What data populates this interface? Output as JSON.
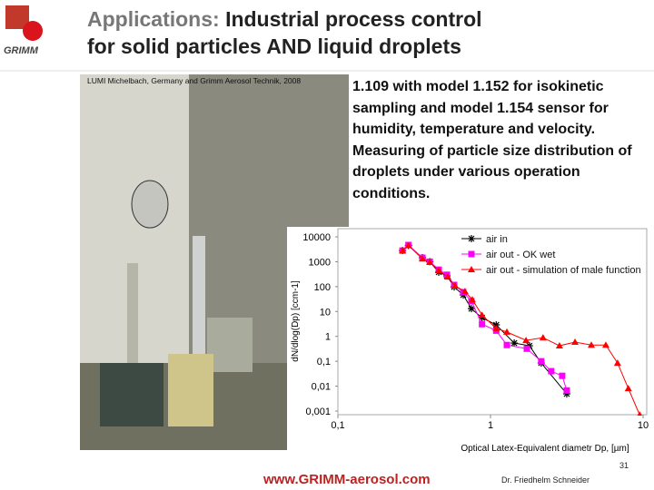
{
  "header": {
    "logo": "GRIMM",
    "title_lead": "Applications:",
    "title_line1": "Industrial process control",
    "title_line2": "for solid particles AND liquid droplets"
  },
  "photo_caption": "LUMI Michelbach, Germany and Grimm Aerosol Technik, 2008",
  "body_text": "1.109 with model 1.152 for isokinetic sampling and model 1.154 sensor for humidity, temperature and velocity. Measuring of particle size distribution of droplets under various operation conditions.",
  "chart_data": {
    "type": "line",
    "log_x": true,
    "log_y": true,
    "y_label": "dN/dlog(Dp) [ccm-1]",
    "x_label": "Optical Latex-Equivalent diametr Dp, [µm]",
    "xlim": [
      0.1,
      10
    ],
    "xticks": [
      {
        "value": 0.1,
        "label": "0,1"
      },
      1,
      10
    ],
    "ylim": [
      0.001,
      10000
    ],
    "yticks": [
      {
        "value": 0.001,
        "label": "0,001"
      },
      {
        "value": 0.01,
        "label": "0,01"
      },
      {
        "value": 0.1,
        "label": "0,1"
      },
      1,
      10,
      100,
      1000,
      10000
    ],
    "series": [
      {
        "name": "air in",
        "color": "#000000",
        "marker": "star",
        "x": [
          0.265,
          0.29,
          0.358,
          0.4,
          0.458,
          0.518,
          0.578,
          0.663,
          0.75,
          0.88,
          1.09,
          1.43,
          1.8,
          2.15,
          3.16
        ],
        "values": [
          2800,
          4500,
          1450,
          1000,
          380,
          270,
          97,
          46,
          13,
          5.6,
          2.9,
          0.54,
          0.42,
          0.085,
          0.0049
        ]
      },
      {
        "name": "air out - OK wet",
        "color": "#ff00ff",
        "marker": "square",
        "x": [
          0.265,
          0.29,
          0.358,
          0.4,
          0.458,
          0.518,
          0.578,
          0.663,
          0.75,
          0.88,
          1.09,
          1.28,
          1.73,
          2.15,
          2.5,
          2.95,
          3.16
        ],
        "values": [
          2800,
          4700,
          1450,
          1000,
          480,
          300,
          117,
          60,
          26,
          3.1,
          1.7,
          0.45,
          0.32,
          0.1,
          0.04,
          0.026,
          0.0067
        ]
      },
      {
        "name": "air out - simulation of male function",
        "color": "#ff0000",
        "marker": "triangle",
        "x": [
          0.265,
          0.29,
          0.358,
          0.4,
          0.458,
          0.525,
          0.586,
          0.68,
          0.76,
          0.88,
          1.09,
          1.28,
          1.71,
          2.21,
          2.83,
          3.58,
          4.58,
          5.7,
          6.8,
          8.0,
          9.5
        ],
        "values": [
          2800,
          4500,
          1300,
          950,
          450,
          245,
          107,
          64,
          30,
          7.2,
          2.1,
          1.5,
          0.69,
          0.89,
          0.42,
          0.59,
          0.45,
          0.45,
          0.085,
          0.0081,
          0.0007
        ]
      }
    ]
  },
  "footer": {
    "website": "www.GRIMM-aerosol.com",
    "author": "Dr. Friedhelm Schneider",
    "page": "31"
  }
}
